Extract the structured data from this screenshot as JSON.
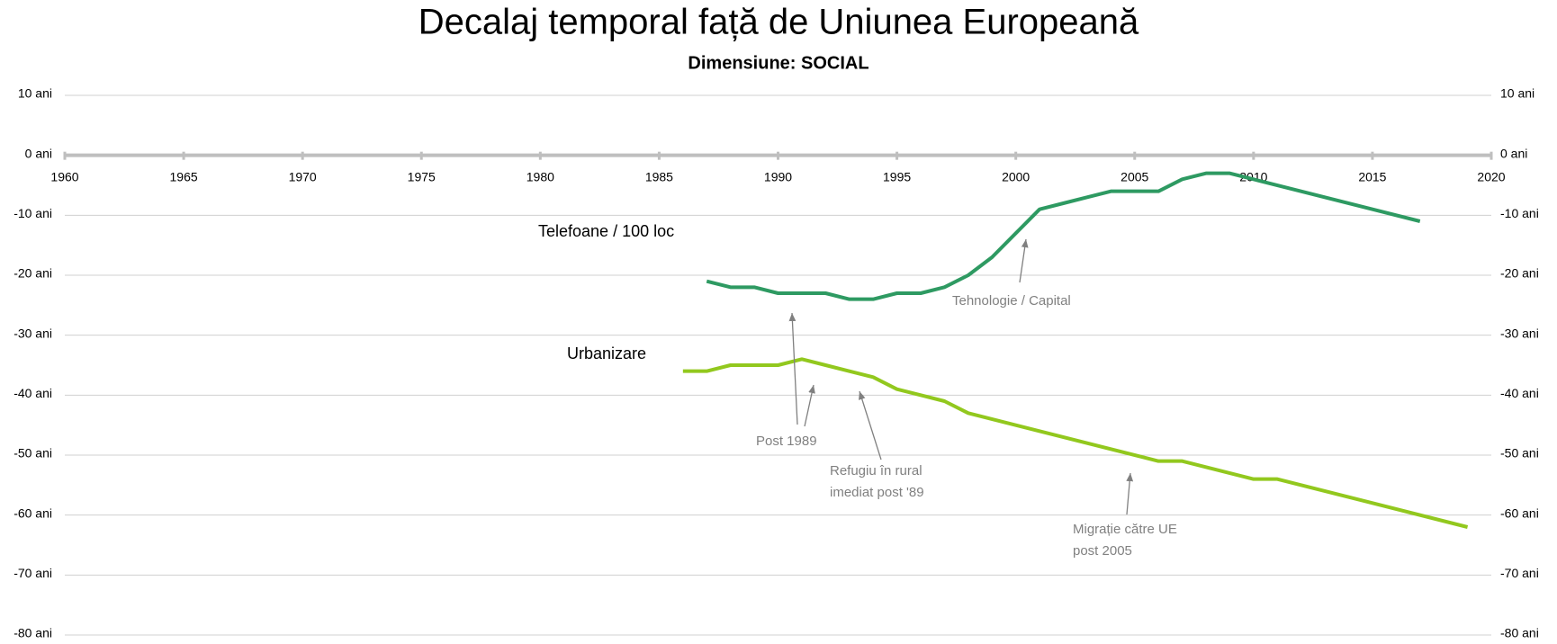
{
  "chart_data": {
    "type": "line",
    "title": "Decalaj temporal față de Uniunea Europeană",
    "subtitle": "Dimensiune: SOCIAL",
    "xlim": [
      1960,
      2020
    ],
    "xticks": [
      1960,
      1965,
      1970,
      1975,
      1980,
      1985,
      1990,
      1995,
      2000,
      2005,
      2010,
      2015,
      2020
    ],
    "ylim": [
      -80,
      10
    ],
    "yticks": [
      {
        "value": 10,
        "label": "10 ani"
      },
      {
        "value": 0,
        "label": "0 ani"
      },
      {
        "value": -10,
        "label": "-10 ani"
      },
      {
        "value": -20,
        "label": "-20 ani"
      },
      {
        "value": -30,
        "label": "-30 ani"
      },
      {
        "value": -40,
        "label": "-40 ani"
      },
      {
        "value": -50,
        "label": "-50 ani"
      },
      {
        "value": -60,
        "label": "-60 ani"
      },
      {
        "value": -70,
        "label": "-70 ani"
      },
      {
        "value": -80,
        "label": "-80 ani"
      }
    ],
    "grid": true,
    "series": [
      {
        "name": "Telefoane / 100 loc",
        "color": "#2e9a62",
        "x": [
          1987,
          1988,
          1989,
          1990,
          1991,
          1992,
          1993,
          1994,
          1995,
          1996,
          1997,
          1998,
          1999,
          2000,
          2001,
          2002,
          2003,
          2004,
          2005,
          2006,
          2007,
          2008,
          2009,
          2010,
          2017
        ],
        "values": [
          -21,
          -22,
          -22,
          -23,
          -23,
          -23,
          -24,
          -24,
          -23,
          -23,
          -22,
          -20,
          -17,
          -13,
          -9,
          -8,
          -7,
          -6,
          -6,
          -6,
          -4,
          -3,
          -3,
          -4,
          -11
        ]
      },
      {
        "name": "Urbanizare",
        "color": "#92c81e",
        "x": [
          1986,
          1987,
          1988,
          1989,
          1990,
          1991,
          1992,
          1993,
          1994,
          1995,
          1996,
          1997,
          1998,
          2006,
          2007,
          2010,
          2011,
          2019
        ],
        "values": [
          -36,
          -36,
          -35,
          -35,
          -35,
          -34,
          -35,
          -36,
          -37,
          -39,
          -40,
          -41,
          -43,
          -51,
          -51,
          -54,
          -54,
          -62
        ]
      }
    ],
    "annotations": [
      [
        "Tehnologie / Capital"
      ],
      [
        "Post 1989"
      ],
      [
        "Refugiu în rural",
        "imediat post '89"
      ],
      [
        "Migrație către UE",
        "post 2005"
      ]
    ]
  }
}
